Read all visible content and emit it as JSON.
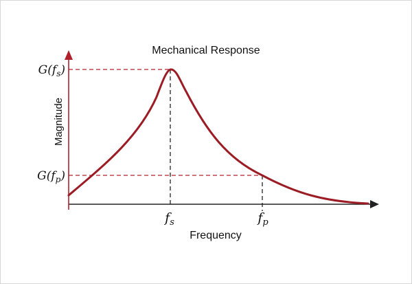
{
  "title": "Mechanical Response",
  "x_label": "Frequency",
  "y_label": "Magnitude",
  "y_markers": [
    {
      "label_main": "G(f",
      "label_sub": "s",
      "label_close": ")"
    },
    {
      "label_main": "G(f",
      "label_sub": "p",
      "label_close": ")"
    }
  ],
  "x_markers": [
    {
      "label_main": "f",
      "label_sub": "s"
    },
    {
      "label_main": "f",
      "label_sub": "p"
    }
  ],
  "colors": {
    "curve": "#9b1c24",
    "y_axis": "#b0202a",
    "x_axis": "#222222",
    "guide_red": "#b0202a",
    "guide_black": "#222222"
  }
}
